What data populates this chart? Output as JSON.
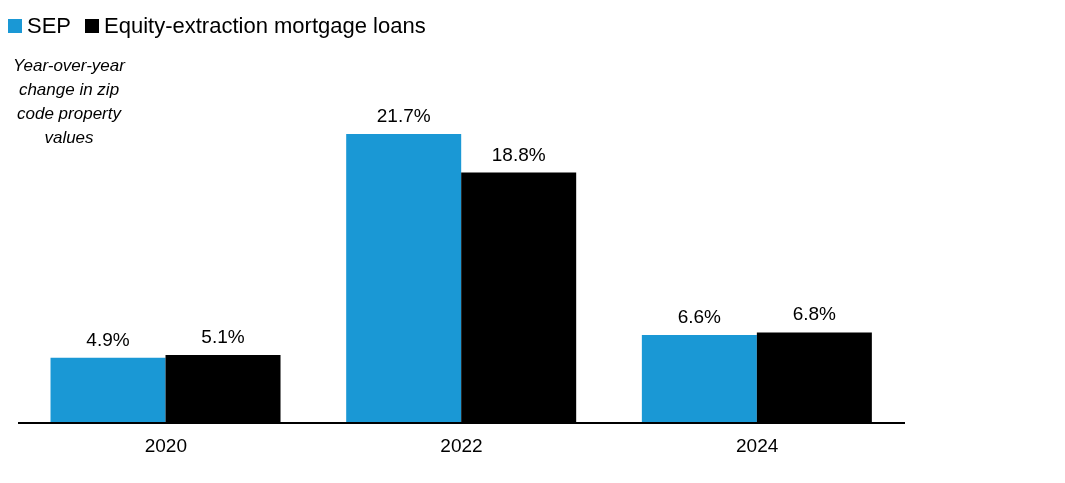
{
  "chart_data": {
    "type": "bar",
    "ylabel": "Year-over-year change in zip code property values",
    "categories": [
      "2020",
      "2022",
      "2024"
    ],
    "series": [
      {
        "name": "SEP",
        "color": "#1a98d5",
        "values": [
          4.9,
          21.7,
          6.6
        ],
        "value_labels": [
          "4.9%",
          "21.7%",
          "6.6%"
        ]
      },
      {
        "name": "Equity-extraction mortgage loans",
        "color": "#000000",
        "values": [
          5.1,
          18.8,
          6.8
        ],
        "value_labels": [
          "5.1%",
          "18.8%",
          "6.8%"
        ]
      }
    ],
    "legend": "top left",
    "grid": false
  }
}
